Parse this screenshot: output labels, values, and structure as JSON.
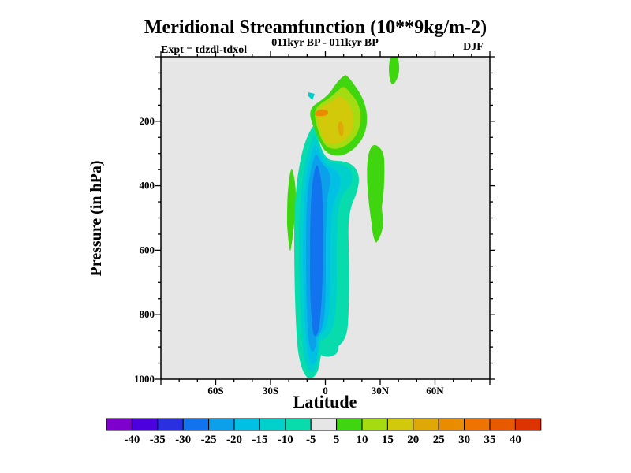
{
  "figure": {
    "title": "Meridional Streamfunction (10**9kg/m-2)",
    "subtitle_left": "Expt = tdzdl-tdxol",
    "subtitle_center": "011kyr BP - 011kyr BP",
    "subtitle_right": "DJF"
  },
  "axes": {
    "x": {
      "label": "Latitude",
      "min": -90,
      "max": 90,
      "minor_step": 10,
      "major_step": 30,
      "ticks": [
        {
          "value": -60,
          "label": "60S"
        },
        {
          "value": -30,
          "label": "30S"
        },
        {
          "value": 0,
          "label": "0"
        },
        {
          "value": 30,
          "label": "30N"
        },
        {
          "value": 60,
          "label": "60N"
        }
      ]
    },
    "y": {
      "label": "Pressure (in hPa)",
      "min": 0,
      "max": 1000,
      "minor_step": 50,
      "major_step": 200,
      "direction": "increasing-downward",
      "ticks": [
        {
          "value": 200,
          "label": "200"
        },
        {
          "value": 400,
          "label": "400"
        },
        {
          "value": 600,
          "label": "600"
        },
        {
          "value": 800,
          "label": "800"
        },
        {
          "value": 1000,
          "label": "1000"
        }
      ]
    }
  },
  "colorbar": {
    "labels": [
      "-40",
      "-35",
      "-30",
      "-25",
      "-20",
      "-15",
      "-10",
      "-5",
      "5",
      "10",
      "15",
      "20",
      "25",
      "30",
      "35",
      "40"
    ],
    "colors": [
      "#7f00cc",
      "#4c00dd",
      "#2a2fe0",
      "#1173ee",
      "#0da0ea",
      "#00c0e4",
      "#00d0cc",
      "#09dcac",
      "#e6e6e6",
      "#3fd610",
      "#a4dc11",
      "#d2c90b",
      "#e0a806",
      "#ea8c00",
      "#ee7300",
      "#e85a00",
      "#dd3300"
    ]
  },
  "chart_data": {
    "type": "filled_contour",
    "title": "Meridional Streamfunction (10**9kg/m-2)",
    "experiment": "tdzdl-tdxol",
    "period": "011kyr BP - 011kyr BP",
    "season": "DJF",
    "xlabel": "Latitude",
    "ylabel": "Pressure (in hPa)",
    "units": "10**9 kg/m-2",
    "x_range_deg": [
      -90,
      90
    ],
    "y_range_hPa": [
      0,
      1000
    ],
    "contour_interval": 5,
    "bin_edges": [
      -45,
      -40,
      -35,
      -30,
      -25,
      -20,
      -15,
      -10,
      -5,
      5,
      10,
      15,
      20,
      25,
      30,
      35,
      40,
      45
    ],
    "background_bin": "-5 to 5 (light gray, field near zero over most of domain)",
    "legend_position": "horizontal colorbar below x-axis",
    "grid": false,
    "features": [
      {
        "name": "main-negative-cell",
        "description": "tall narrow negative anomaly (blues/teal)",
        "outer_bin": "-10 to -5",
        "innermost_bin": "-30 to -25",
        "lat_extent": [
          -17,
          18
        ],
        "pressure_extent_hPa": [
          215,
          995
        ],
        "core": {
          "lat_extent": [
            -7,
            0
          ],
          "pressure_extent_hPa": [
            350,
            860
          ]
        }
      },
      {
        "name": "upper-positive-cell",
        "description": "green/yellow positive cell above main cell",
        "outer_bin": "5 to 10",
        "innermost_bin": "25 to 30",
        "lat_extent": [
          -7.5,
          23.5
        ],
        "pressure_extent_hPa": [
          55,
          310
        ],
        "yellow_region": {
          "bin": "15 to 20",
          "lat_extent": [
            -5,
            16
          ],
          "pressure_extent_hPa": [
            140,
            270
          ]
        },
        "orange_spots": [
          {
            "bin": "25 to 30",
            "lat_extent": [
              -5,
              3
            ],
            "pressure_extent_hPa": [
              165,
              185
            ]
          },
          {
            "bin": "20 to 25",
            "lat_extent": [
              7,
              11
            ],
            "pressure_extent_hPa": [
              200,
              245
            ]
          }
        ]
      },
      {
        "name": "right-positive-band",
        "bin": "5 to 10",
        "lat_extent": [
          23,
          33
        ],
        "pressure_extent_hPa": [
          270,
          580
        ]
      },
      {
        "name": "left-positive-sliver",
        "bin": "5 to 10",
        "lat_extent": [
          -20,
          -15
        ],
        "pressure_extent_hPa": [
          345,
          600
        ]
      },
      {
        "name": "top-right-positive-sliver",
        "bin": "5 to 10",
        "lat_extent": [
          35,
          41
        ],
        "pressure_extent_hPa": [
          0,
          85
        ]
      },
      {
        "name": "small-negative-spot",
        "bin": "-15 to -10",
        "lat_extent": [
          -8,
          -5
        ],
        "pressure_extent_hPa": [
          110,
          130
        ]
      }
    ]
  }
}
